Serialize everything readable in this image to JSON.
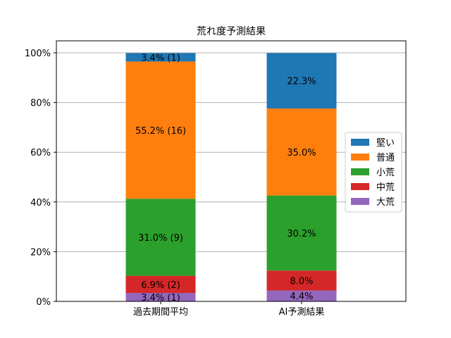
{
  "chart_data": {
    "type": "bar",
    "stacked": true,
    "title": "荒れ度予測結果",
    "categories": [
      "過去期間平均",
      "AI予測結果"
    ],
    "ylim": [
      0,
      100
    ],
    "yticks": [
      "0%",
      "20%",
      "40%",
      "60%",
      "80%",
      "100%"
    ],
    "grid": "horizontal",
    "legend_position": "right",
    "series": [
      {
        "name": "大荒",
        "color": "#9467bd",
        "values": [
          3.4,
          4.4
        ],
        "labels": [
          "3.4% (1)",
          "4.4%"
        ]
      },
      {
        "name": "中荒",
        "color": "#d62728",
        "values": [
          6.9,
          8.0
        ],
        "labels": [
          "6.9% (2)",
          "8.0%"
        ]
      },
      {
        "name": "小荒",
        "color": "#2ca02c",
        "values": [
          31.0,
          30.2
        ],
        "labels": [
          "31.0% (9)",
          "30.2%"
        ]
      },
      {
        "name": "普通",
        "color": "#ff7f0e",
        "values": [
          55.2,
          35.0
        ],
        "labels": [
          "55.2% (16)",
          "35.0%"
        ]
      },
      {
        "name": "堅い",
        "color": "#1f77b4",
        "values": [
          3.4,
          22.3
        ],
        "labels": [
          "3.4% (1)",
          "22.3%"
        ]
      }
    ],
    "legend_order": [
      "堅い",
      "普通",
      "小荒",
      "中荒",
      "大荒"
    ]
  }
}
